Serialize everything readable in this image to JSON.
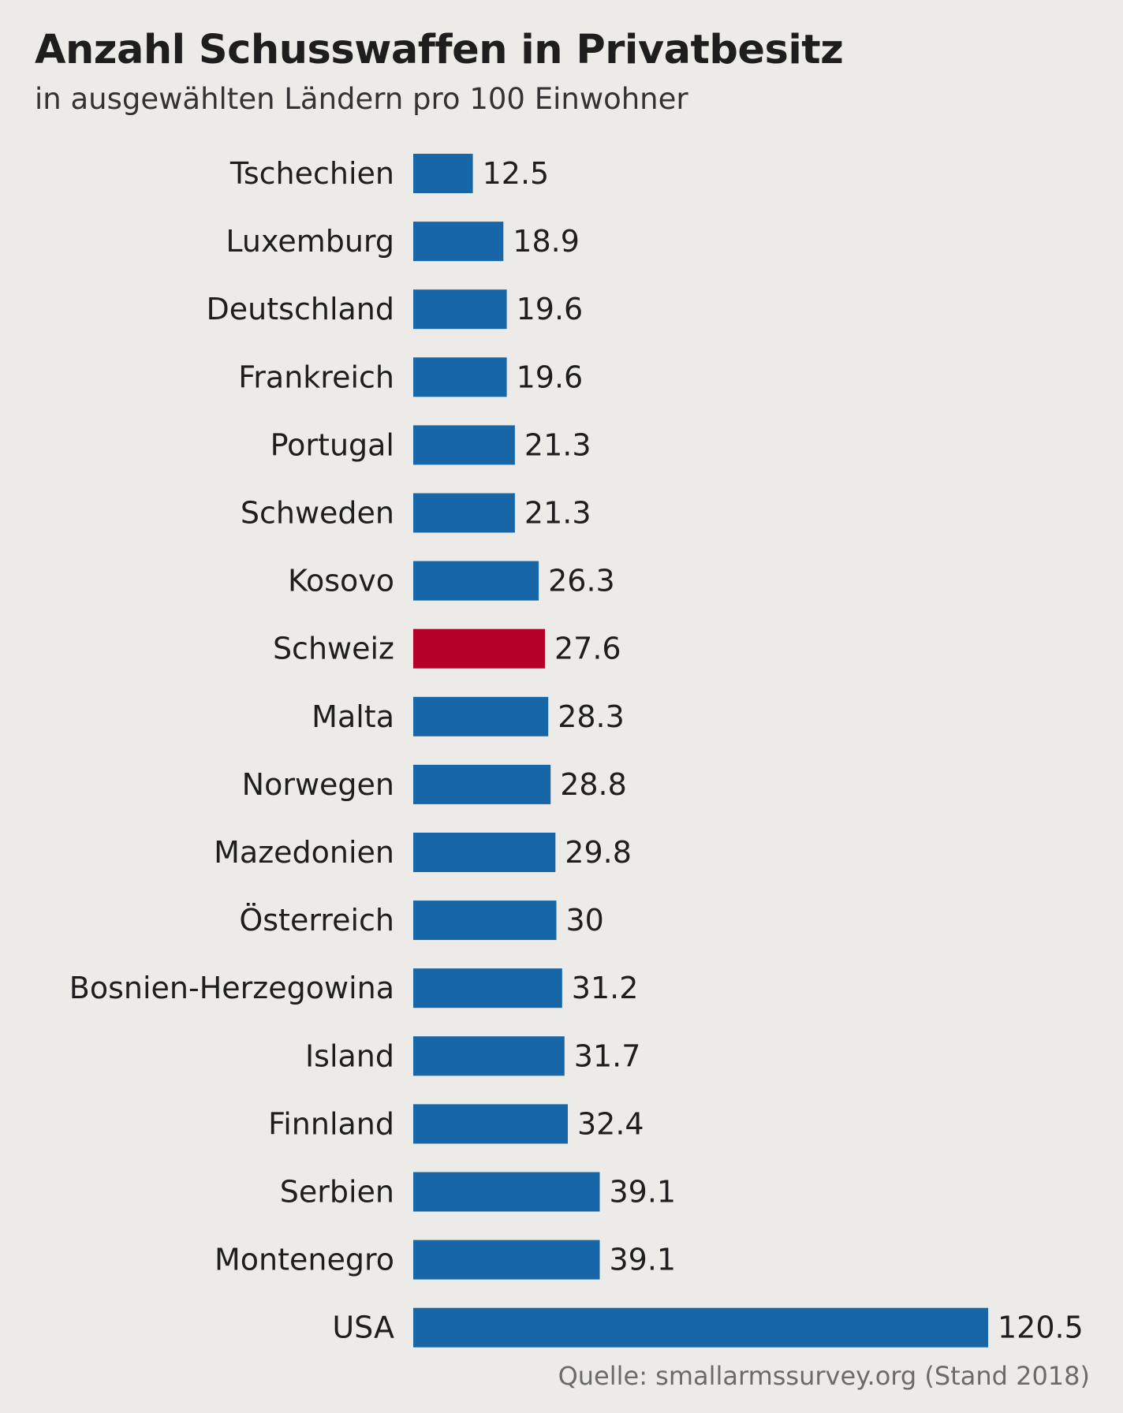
{
  "title": "Anzahl Schusswaffen in Privatbesitz",
  "subtitle": "in ausgewählten Ländern pro 100 Einwohner",
  "source": "Quelle: smallarmssurvey.org (Stand 2018)",
  "colors": {
    "background": "#ecebe7",
    "bar_default": "#1767a8",
    "bar_highlight": "#b5002a"
  },
  "chart_data": {
    "type": "bar",
    "orientation": "horizontal",
    "title": "Anzahl Schusswaffen in Privatbesitz",
    "subtitle": "in ausgewählten Ländern pro 100 Einwohner",
    "categories": [
      "Tschechien",
      "Luxemburg",
      "Deutschland",
      "Frankreich",
      "Portugal",
      "Schweden",
      "Kosovo",
      "Schweiz",
      "Malta",
      "Norwegen",
      "Mazedonien",
      "Österreich",
      "Bosnien-Herzegowina",
      "Island",
      "Finnland",
      "Serbien",
      "Montenegro",
      "USA"
    ],
    "values": [
      12.5,
      18.9,
      19.6,
      19.6,
      21.3,
      21.3,
      26.3,
      27.6,
      28.3,
      28.8,
      29.8,
      30,
      31.2,
      31.7,
      32.4,
      39.1,
      39.1,
      120.5
    ],
    "value_labels": [
      "12.5",
      "18.9",
      "19.6",
      "19.6",
      "21.3",
      "21.3",
      "26.3",
      "27.6",
      "28.3",
      "28.8",
      "29.8",
      "30",
      "31.2",
      "31.7",
      "32.4",
      "39.1",
      "39.1",
      "120.5"
    ],
    "highlight": "Schweiz",
    "xlim": [
      0,
      120.5
    ],
    "grid": false,
    "legend": "none"
  }
}
